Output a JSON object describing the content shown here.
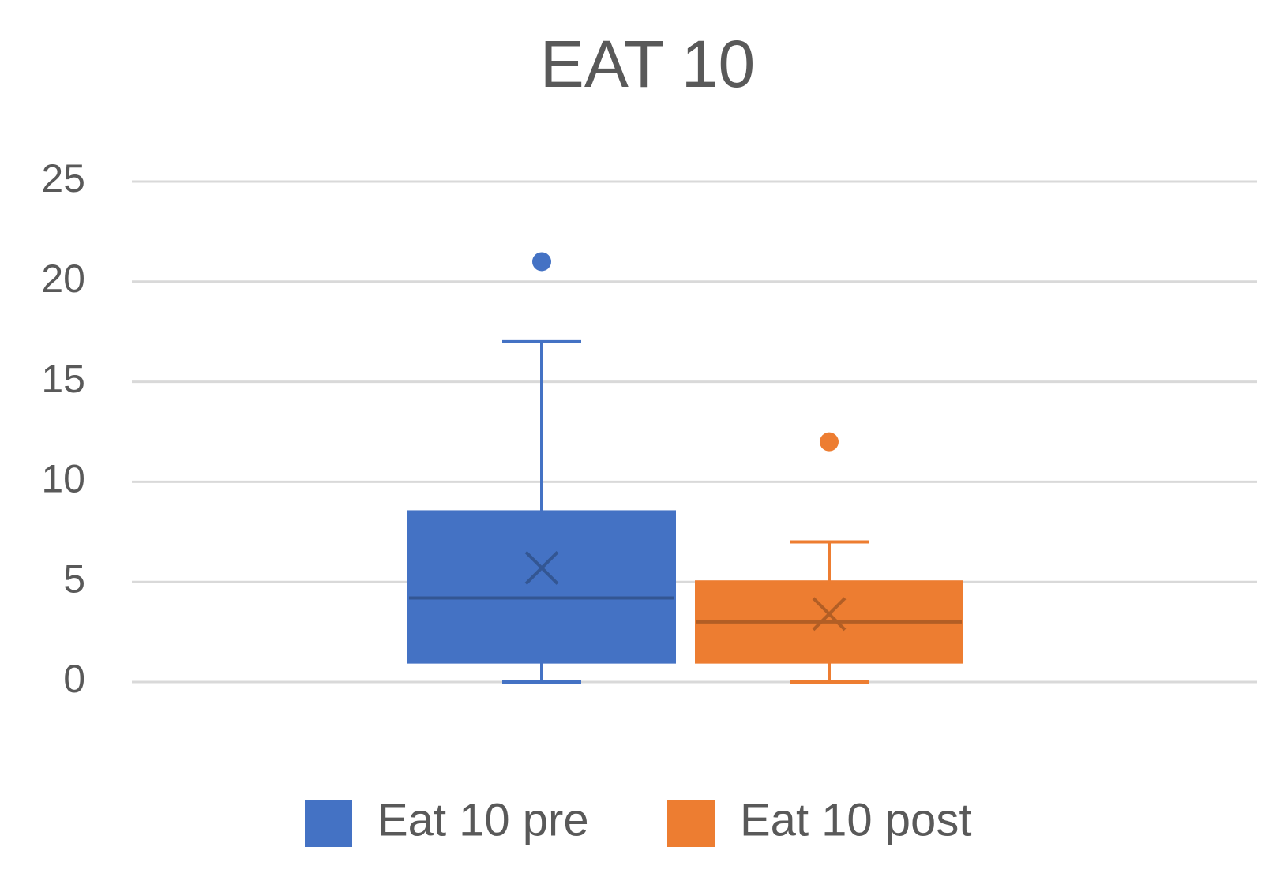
{
  "chart_data": {
    "type": "box",
    "title": "EAT 10",
    "ylim": [
      0,
      25
    ],
    "yticks": [
      0,
      5,
      10,
      15,
      20,
      25
    ],
    "grid": true,
    "legend": "bottom",
    "series": [
      {
        "name": "Eat 10 pre",
        "color": "#4472c4",
        "min": 0,
        "q1": 1,
        "median": 4.2,
        "q3": 8.5,
        "max": 17,
        "mean": 5.7,
        "outliers": [
          21
        ]
      },
      {
        "name": "Eat 10 post",
        "color": "#ed7d31",
        "min": 0,
        "q1": 1,
        "median": 3,
        "q3": 5,
        "max": 7,
        "mean": 3.4,
        "outliers": [
          12
        ]
      }
    ]
  }
}
